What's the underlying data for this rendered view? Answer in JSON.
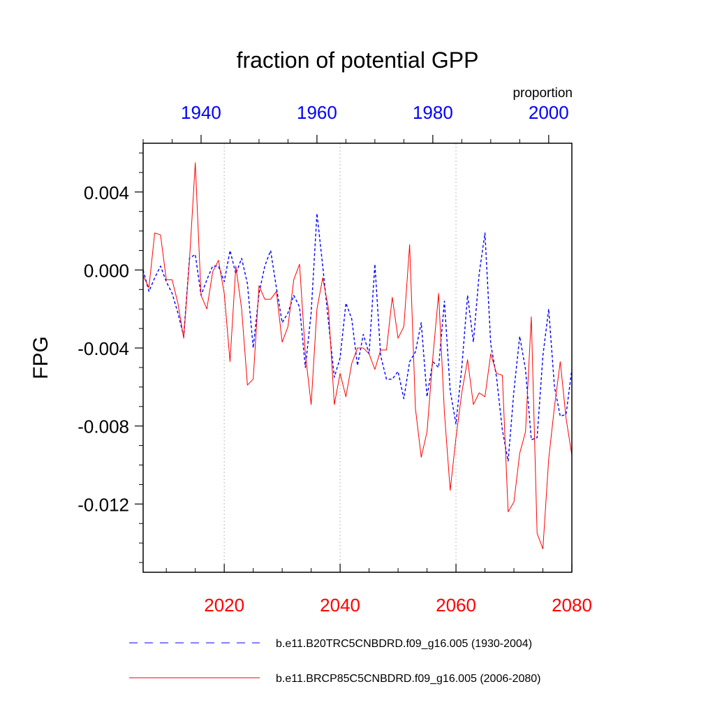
{
  "chart_data": {
    "type": "line",
    "title": "fraction of potential GPP",
    "ylabel": "FPG",
    "units": "proportion",
    "ylim": [
      -0.0155,
      0.0065
    ],
    "yticks": [
      0.004,
      0.0,
      -0.004,
      -0.008,
      -0.012
    ],
    "ytick_labels": [
      "0.004",
      "0.000",
      "-0.004",
      "-0.008",
      "-0.012"
    ],
    "bottom_axis": {
      "xlim": [
        2006,
        2080
      ],
      "ticks": [
        2020,
        2040,
        2060,
        2080
      ],
      "tick_labels": [
        "2020",
        "2040",
        "2060",
        "2080"
      ],
      "color": "#ff0000"
    },
    "top_axis": {
      "xlim": [
        1930,
        2004
      ],
      "ticks": [
        1940,
        1960,
        1980,
        2000
      ],
      "tick_labels": [
        "1940",
        "1960",
        "1980",
        "2000"
      ],
      "color": "#0000ff"
    },
    "grid": "dotted vertical lines at bottom-axis ticks",
    "legend_position": "bottom",
    "series": [
      {
        "name": "b.e11.B20TRC5CNBDRD.f09_g16.005 (1930-2004)",
        "axis": "top",
        "color": "#0000ff",
        "style": "dashed",
        "x_start": 1930,
        "values": [
          0.0,
          -0.0011,
          -0.0004,
          0.0002,
          -0.0006,
          -0.0012,
          -0.0022,
          -0.0034,
          0.0006,
          0.0008,
          -0.0013,
          -0.0005,
          0.0002,
          0.0002,
          -0.0006,
          0.001,
          -0.0002,
          0.0006,
          -0.0007,
          -0.004,
          -0.0012,
          0.0002,
          0.001,
          -0.0009,
          -0.0027,
          -0.0022,
          -0.0013,
          -0.0019,
          -0.005,
          -0.0022,
          0.0029,
          0.0002,
          -0.0027,
          -0.0055,
          -0.0045,
          -0.0017,
          -0.0025,
          -0.0049,
          -0.0033,
          -0.0043,
          0.0003,
          -0.0044,
          -0.0056,
          -0.0056,
          -0.0052,
          -0.0066,
          -0.0047,
          -0.0042,
          -0.0027,
          -0.0065,
          -0.0047,
          -0.005,
          -0.0016,
          -0.0062,
          -0.0079,
          -0.005,
          -0.0013,
          -0.0037,
          -0.0002,
          0.0019,
          -0.0038,
          -0.0055,
          -0.0082,
          -0.0098,
          -0.0062,
          -0.0034,
          -0.0051,
          -0.0087,
          -0.0086,
          -0.0044,
          -0.002,
          -0.006,
          -0.0075,
          -0.0074,
          -0.0051
        ]
      },
      {
        "name": "b.e11.BRCP85C5CNBDRD.f09_g16.005 (2006-2080)",
        "axis": "bottom",
        "color": "#ff0000",
        "style": "solid",
        "x_start": 2006,
        "values": [
          -0.0003,
          -0.0009,
          0.0019,
          0.0018,
          -0.0005,
          -0.0005,
          -0.0017,
          -0.0035,
          0.0005,
          0.0055,
          -0.0013,
          -0.002,
          -0.0001,
          0.0005,
          -0.0012,
          -0.0047,
          0.0002,
          -0.002,
          -0.0059,
          -0.0056,
          -0.0008,
          -0.0015,
          -0.0015,
          -0.0011,
          -0.0037,
          -0.0029,
          -0.0005,
          0.0003,
          -0.0043,
          -0.0069,
          -0.002,
          -0.0004,
          -0.002,
          -0.0069,
          -0.0053,
          -0.0065,
          -0.0048,
          -0.004,
          -0.004,
          -0.0043,
          -0.0051,
          -0.0041,
          -0.0041,
          -0.0014,
          -0.0035,
          -0.0029,
          0.0013,
          -0.0071,
          -0.0096,
          -0.0083,
          -0.0045,
          -0.0012,
          -0.0073,
          -0.0113,
          -0.0086,
          -0.0063,
          -0.0046,
          -0.0069,
          -0.0063,
          -0.0065,
          -0.0043,
          -0.0053,
          -0.0054,
          -0.0124,
          -0.0119,
          -0.0094,
          -0.0083,
          -0.0024,
          -0.0135,
          -0.0143,
          -0.0097,
          -0.007,
          -0.0047,
          -0.0076,
          -0.0095
        ]
      }
    ]
  }
}
